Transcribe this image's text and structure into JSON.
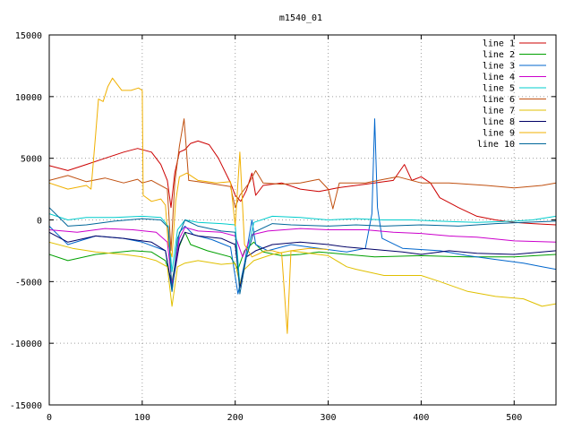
{
  "chart_data": {
    "type": "line",
    "title": "m1540_01",
    "xlabel": "",
    "ylabel": "",
    "xlim": [
      0,
      545
    ],
    "ylim": [
      -15000,
      15000
    ],
    "x_ticks": [
      0,
      100,
      200,
      300,
      400,
      500
    ],
    "x_tick_labels": [
      "0",
      "100",
      "200",
      "300",
      "400",
      "500"
    ],
    "y_ticks": [
      -15000,
      -10000,
      -5000,
      0,
      5000,
      10000,
      15000
    ],
    "y_tick_labels": [
      "-15000",
      "-10000",
      "-5000",
      "0",
      "5000",
      "10000",
      "15000"
    ],
    "grid": true,
    "legend_position": "top-right",
    "series": [
      {
        "name": "line 1",
        "color": "#cc0000",
        "points": [
          [
            0,
            4400
          ],
          [
            20,
            4000
          ],
          [
            40,
            4500
          ],
          [
            60,
            5000
          ],
          [
            80,
            5500
          ],
          [
            95,
            5800
          ],
          [
            110,
            5500
          ],
          [
            120,
            4500
          ],
          [
            127,
            3200
          ],
          [
            131,
            1000
          ],
          [
            135,
            3800
          ],
          [
            140,
            5500
          ],
          [
            146,
            5700
          ],
          [
            152,
            6200
          ],
          [
            160,
            6400
          ],
          [
            172,
            6100
          ],
          [
            182,
            5000
          ],
          [
            195,
            3000
          ],
          [
            200,
            2000
          ],
          [
            206,
            1500
          ],
          [
            212,
            2400
          ],
          [
            218,
            3800
          ],
          [
            222,
            2000
          ],
          [
            230,
            2800
          ],
          [
            250,
            3000
          ],
          [
            270,
            2500
          ],
          [
            290,
            2300
          ],
          [
            310,
            2600
          ],
          [
            340,
            2900
          ],
          [
            370,
            3200
          ],
          [
            382,
            4500
          ],
          [
            390,
            3200
          ],
          [
            400,
            3500
          ],
          [
            410,
            3000
          ],
          [
            420,
            1800
          ],
          [
            440,
            1000
          ],
          [
            460,
            300
          ],
          [
            480,
            0
          ],
          [
            500,
            -200
          ],
          [
            520,
            -300
          ],
          [
            545,
            -400
          ]
        ]
      },
      {
        "name": "line 2",
        "color": "#00a000",
        "points": [
          [
            0,
            -2800
          ],
          [
            20,
            -3300
          ],
          [
            50,
            -2800
          ],
          [
            90,
            -2500
          ],
          [
            110,
            -2600
          ],
          [
            125,
            -3300
          ],
          [
            132,
            -5000
          ],
          [
            138,
            -2500
          ],
          [
            146,
            -1000
          ],
          [
            152,
            -2000
          ],
          [
            170,
            -2500
          ],
          [
            195,
            -3000
          ],
          [
            203,
            -4000
          ],
          [
            210,
            -2500
          ],
          [
            220,
            -1800
          ],
          [
            230,
            -2600
          ],
          [
            250,
            -2900
          ],
          [
            270,
            -2800
          ],
          [
            290,
            -2600
          ],
          [
            320,
            -2800
          ],
          [
            350,
            -3000
          ],
          [
            400,
            -2900
          ],
          [
            450,
            -3000
          ],
          [
            500,
            -3000
          ],
          [
            545,
            -2800
          ]
        ]
      },
      {
        "name": "line 3",
        "color": "#0066cc",
        "points": [
          [
            0,
            -500
          ],
          [
            20,
            -2000
          ],
          [
            50,
            -1300
          ],
          [
            80,
            -1500
          ],
          [
            100,
            -1800
          ],
          [
            125,
            -2500
          ],
          [
            132,
            -5800
          ],
          [
            140,
            -1000
          ],
          [
            146,
            -500
          ],
          [
            155,
            -1200
          ],
          [
            175,
            -1600
          ],
          [
            195,
            -2200
          ],
          [
            203,
            -6000
          ],
          [
            210,
            -3500
          ],
          [
            218,
            0
          ],
          [
            222,
            -2000
          ],
          [
            235,
            -2500
          ],
          [
            260,
            -2000
          ],
          [
            290,
            -2300
          ],
          [
            320,
            -2600
          ],
          [
            340,
            -2300
          ],
          [
            347,
            500
          ],
          [
            350,
            8200
          ],
          [
            353,
            1000
          ],
          [
            358,
            -1500
          ],
          [
            380,
            -2300
          ],
          [
            420,
            -2500
          ],
          [
            450,
            -2900
          ],
          [
            480,
            -3200
          ],
          [
            510,
            -3500
          ],
          [
            530,
            -3800
          ],
          [
            545,
            -4000
          ]
        ]
      },
      {
        "name": "line 4",
        "color": "#cc00cc",
        "points": [
          [
            0,
            -800
          ],
          [
            30,
            -1000
          ],
          [
            60,
            -700
          ],
          [
            90,
            -800
          ],
          [
            115,
            -1000
          ],
          [
            127,
            -1800
          ],
          [
            132,
            -5200
          ],
          [
            140,
            -1500
          ],
          [
            146,
            -600
          ],
          [
            160,
            -900
          ],
          [
            185,
            -1000
          ],
          [
            200,
            -1300
          ],
          [
            208,
            -3000
          ],
          [
            218,
            -1200
          ],
          [
            235,
            -900
          ],
          [
            270,
            -700
          ],
          [
            300,
            -800
          ],
          [
            340,
            -800
          ],
          [
            370,
            -1000
          ],
          [
            400,
            -1100
          ],
          [
            430,
            -1300
          ],
          [
            460,
            -1400
          ],
          [
            500,
            -1700
          ],
          [
            545,
            -1800
          ]
        ]
      },
      {
        "name": "line 5",
        "color": "#00cccc",
        "points": [
          [
            0,
            500
          ],
          [
            20,
            0
          ],
          [
            40,
            200
          ],
          [
            70,
            200
          ],
          [
            100,
            300
          ],
          [
            120,
            200
          ],
          [
            128,
            -500
          ],
          [
            132,
            -4200
          ],
          [
            138,
            -800
          ],
          [
            146,
            0
          ],
          [
            160,
            -200
          ],
          [
            185,
            -300
          ],
          [
            200,
            -400
          ],
          [
            205,
            -5300
          ],
          [
            212,
            -3000
          ],
          [
            220,
            -200
          ],
          [
            240,
            300
          ],
          [
            270,
            200
          ],
          [
            300,
            0
          ],
          [
            330,
            100
          ],
          [
            360,
            0
          ],
          [
            390,
            0
          ],
          [
            420,
            -100
          ],
          [
            460,
            -200
          ],
          [
            500,
            -100
          ],
          [
            520,
            0
          ],
          [
            545,
            300
          ]
        ]
      },
      {
        "name": "line 6",
        "color": "#c05010",
        "points": [
          [
            0,
            3200
          ],
          [
            20,
            3600
          ],
          [
            40,
            3100
          ],
          [
            60,
            3400
          ],
          [
            80,
            3000
          ],
          [
            95,
            3300
          ],
          [
            100,
            3000
          ],
          [
            110,
            3200
          ],
          [
            127,
            2500
          ],
          [
            131,
            -2500
          ],
          [
            135,
            3000
          ],
          [
            140,
            6000
          ],
          [
            145,
            8200
          ],
          [
            150,
            3200
          ],
          [
            170,
            3000
          ],
          [
            195,
            2700
          ],
          [
            200,
            1000
          ],
          [
            205,
            2000
          ],
          [
            215,
            3000
          ],
          [
            222,
            4000
          ],
          [
            230,
            3000
          ],
          [
            250,
            2900
          ],
          [
            270,
            3000
          ],
          [
            290,
            3300
          ],
          [
            300,
            2500
          ],
          [
            305,
            900
          ],
          [
            312,
            3000
          ],
          [
            340,
            3000
          ],
          [
            360,
            3300
          ],
          [
            375,
            3500
          ],
          [
            400,
            3000
          ],
          [
            430,
            3000
          ],
          [
            470,
            2800
          ],
          [
            500,
            2600
          ],
          [
            530,
            2800
          ],
          [
            545,
            3000
          ]
        ]
      },
      {
        "name": "line 7",
        "color": "#e0c000",
        "points": [
          [
            0,
            -1800
          ],
          [
            25,
            -2300
          ],
          [
            50,
            -2600
          ],
          [
            80,
            -2800
          ],
          [
            100,
            -3000
          ],
          [
            115,
            -3300
          ],
          [
            127,
            -3800
          ],
          [
            132,
            -7000
          ],
          [
            138,
            -3800
          ],
          [
            146,
            -3500
          ],
          [
            160,
            -3300
          ],
          [
            185,
            -3600
          ],
          [
            200,
            -3500
          ],
          [
            205,
            -5200
          ],
          [
            210,
            -4000
          ],
          [
            220,
            -3300
          ],
          [
            240,
            -2800
          ],
          [
            260,
            -2500
          ],
          [
            280,
            -2700
          ],
          [
            300,
            -2900
          ],
          [
            320,
            -3800
          ],
          [
            330,
            -4000
          ],
          [
            360,
            -4500
          ],
          [
            400,
            -4500
          ],
          [
            420,
            -5000
          ],
          [
            450,
            -5800
          ],
          [
            480,
            -6200
          ],
          [
            510,
            -6400
          ],
          [
            530,
            -7000
          ],
          [
            545,
            -6800
          ]
        ]
      },
      {
        "name": "line 8",
        "color": "#000066",
        "points": [
          [
            0,
            -1000
          ],
          [
            20,
            -1800
          ],
          [
            50,
            -1300
          ],
          [
            80,
            -1500
          ],
          [
            110,
            -1800
          ],
          [
            125,
            -2500
          ],
          [
            132,
            -5500
          ],
          [
            140,
            -2000
          ],
          [
            146,
            -1000
          ],
          [
            160,
            -1300
          ],
          [
            185,
            -1500
          ],
          [
            200,
            -2000
          ],
          [
            205,
            -5500
          ],
          [
            212,
            -3000
          ],
          [
            222,
            -2500
          ],
          [
            240,
            -2000
          ],
          [
            270,
            -1800
          ],
          [
            300,
            -2000
          ],
          [
            320,
            -2200
          ],
          [
            350,
            -2400
          ],
          [
            380,
            -2600
          ],
          [
            400,
            -2800
          ],
          [
            430,
            -2500
          ],
          [
            460,
            -2700
          ],
          [
            500,
            -2800
          ],
          [
            545,
            -2500
          ]
        ]
      },
      {
        "name": "line 9",
        "color": "#f0b000",
        "points": [
          [
            0,
            3000
          ],
          [
            20,
            2500
          ],
          [
            40,
            2800
          ],
          [
            45,
            2500
          ],
          [
            50,
            7000
          ],
          [
            53,
            9800
          ],
          [
            58,
            9600
          ],
          [
            63,
            10800
          ],
          [
            68,
            11500
          ],
          [
            73,
            11000
          ],
          [
            78,
            10500
          ],
          [
            88,
            10500
          ],
          [
            96,
            10700
          ],
          [
            100,
            10500
          ],
          [
            101,
            2000
          ],
          [
            110,
            1500
          ],
          [
            120,
            1700
          ],
          [
            125,
            1200
          ],
          [
            128,
            -2000
          ],
          [
            132,
            -3000
          ],
          [
            136,
            1500
          ],
          [
            140,
            3500
          ],
          [
            148,
            3800
          ],
          [
            160,
            3200
          ],
          [
            180,
            3000
          ],
          [
            195,
            3100
          ],
          [
            200,
            -500
          ],
          [
            205,
            5500
          ],
          [
            210,
            -2000
          ],
          [
            218,
            -3000
          ],
          [
            224,
            -2800
          ],
          [
            232,
            -2500
          ],
          [
            240,
            -2500
          ],
          [
            250,
            -2700
          ],
          [
            256,
            -9200
          ],
          [
            260,
            -2500
          ],
          [
            280,
            -2300
          ],
          [
            300,
            -2400
          ]
        ]
      },
      {
        "name": "line 10",
        "color": "#006699",
        "points": [
          [
            0,
            1000
          ],
          [
            20,
            -500
          ],
          [
            40,
            -400
          ],
          [
            70,
            -100
          ],
          [
            100,
            100
          ],
          [
            120,
            0
          ],
          [
            128,
            -600
          ],
          [
            132,
            -5800
          ],
          [
            138,
            -1500
          ],
          [
            146,
            0
          ],
          [
            160,
            -500
          ],
          [
            185,
            -900
          ],
          [
            200,
            -1000
          ],
          [
            205,
            -6000
          ],
          [
            212,
            -3000
          ],
          [
            220,
            -1000
          ],
          [
            240,
            -300
          ],
          [
            260,
            -400
          ],
          [
            300,
            -500
          ],
          [
            330,
            -400
          ],
          [
            360,
            -500
          ],
          [
            400,
            -400
          ],
          [
            440,
            -500
          ],
          [
            480,
            -300
          ],
          [
            510,
            -200
          ],
          [
            545,
            -100
          ]
        ]
      }
    ]
  }
}
